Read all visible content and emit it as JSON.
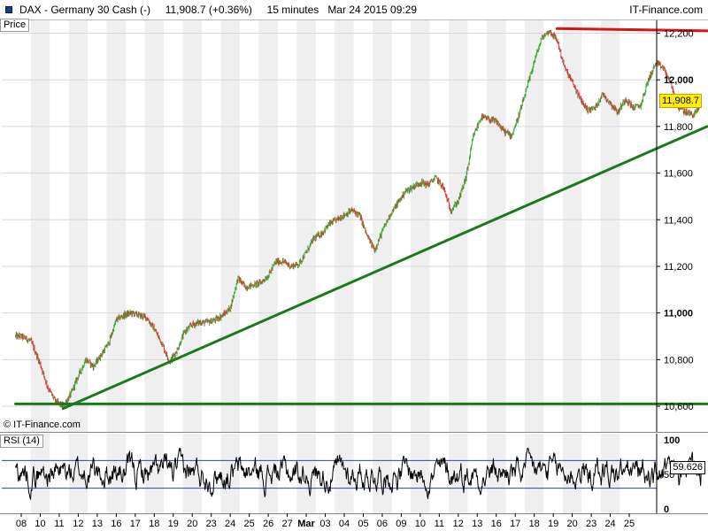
{
  "header": {
    "instrument": "DAX - Germany 30 Cash (-)",
    "last": "11,908.7",
    "change": "(+0.36%)",
    "timeframe": "15 minutes",
    "datetime": "Mar 24 2015 09:29",
    "brand": "IT-Finance.com"
  },
  "price_panel": {
    "label": "Price",
    "copyright": "© IT-Finance.com",
    "last_price_tag": "11,908.7"
  },
  "rsi_panel": {
    "label": "RSI (14)",
    "value_tag": "59.626"
  },
  "colors": {
    "up": "#33aa33",
    "down": "#dd3333",
    "trend_green": "#1a7a1a",
    "resistance_red": "#dd1111",
    "rsi_line": "#000000",
    "rsi_bands": "#3344aa",
    "price_tag": "#ffee00"
  },
  "chart_data": [
    {
      "type": "candlestick",
      "title": "DAX - Germany 30 Cash (-)",
      "ylim": [
        10560,
        12260
      ],
      "y_ticks": [
        10600,
        10800,
        11000,
        11200,
        11400,
        11600,
        11800,
        12000,
        12200
      ],
      "y_tick_labels": [
        "10,600",
        "10,800",
        "11,000",
        "11,200",
        "11,400",
        "11,600",
        "11,800",
        "12,000",
        "12,200"
      ],
      "y_tick_bold": [
        false,
        false,
        true,
        false,
        false,
        false,
        false,
        true,
        false
      ],
      "x_tick_labels": [
        "08",
        "10",
        "11",
        "12",
        "13",
        "16",
        "17",
        "18",
        "19",
        "20",
        "23",
        "24",
        "25",
        "26",
        "27",
        "Mar",
        "03",
        "04",
        "05",
        "06",
        "09",
        "10",
        "11",
        "12",
        "13",
        "16",
        "17",
        "18",
        "19",
        "20",
        "23",
        "24",
        "25"
      ],
      "last_price": 11908.7,
      "close_path": [
        [
          0,
          10900
        ],
        [
          0.5,
          10880
        ],
        [
          1.0,
          10780
        ],
        [
          1.4,
          10680
        ],
        [
          1.8,
          10620
        ],
        [
          2.2,
          10600
        ],
        [
          2.6,
          10650
        ],
        [
          3.0,
          10730
        ],
        [
          3.4,
          10800
        ],
        [
          3.8,
          10770
        ],
        [
          4.2,
          10820
        ],
        [
          4.6,
          10870
        ],
        [
          5.0,
          10970
        ],
        [
          5.4,
          10990
        ],
        [
          5.8,
          11000
        ],
        [
          6.2,
          10990
        ],
        [
          6.6,
          10980
        ],
        [
          7.0,
          10930
        ],
        [
          7.4,
          10870
        ],
        [
          7.8,
          10790
        ],
        [
          8.2,
          10840
        ],
        [
          8.6,
          10920
        ],
        [
          9.0,
          10950
        ],
        [
          9.4,
          10960
        ],
        [
          9.8,
          10960
        ],
        [
          10.2,
          10970
        ],
        [
          10.6,
          10990
        ],
        [
          11.0,
          11020
        ],
        [
          11.4,
          11150
        ],
        [
          11.8,
          11110
        ],
        [
          12.2,
          11120
        ],
        [
          12.6,
          11130
        ],
        [
          13.0,
          11160
        ],
        [
          13.4,
          11220
        ],
        [
          13.8,
          11220
        ],
        [
          14.2,
          11200
        ],
        [
          14.6,
          11210
        ],
        [
          15.0,
          11260
        ],
        [
          15.4,
          11320
        ],
        [
          15.8,
          11340
        ],
        [
          16.2,
          11380
        ],
        [
          16.6,
          11400
        ],
        [
          17.0,
          11420
        ],
        [
          17.4,
          11440
        ],
        [
          17.8,
          11420
        ],
        [
          18.2,
          11330
        ],
        [
          18.6,
          11270
        ],
        [
          19.0,
          11350
        ],
        [
          19.4,
          11420
        ],
        [
          19.8,
          11470
        ],
        [
          20.2,
          11520
        ],
        [
          20.6,
          11540
        ],
        [
          21.0,
          11560
        ],
        [
          21.4,
          11550
        ],
        [
          21.8,
          11580
        ],
        [
          22.2,
          11540
        ],
        [
          22.6,
          11440
        ],
        [
          23.0,
          11480
        ],
        [
          23.4,
          11580
        ],
        [
          23.8,
          11760
        ],
        [
          24.2,
          11840
        ],
        [
          24.6,
          11830
        ],
        [
          25.0,
          11820
        ],
        [
          25.4,
          11780
        ],
        [
          25.8,
          11760
        ],
        [
          26.2,
          11850
        ],
        [
          26.6,
          11960
        ],
        [
          27.0,
          12080
        ],
        [
          27.4,
          12180
        ],
        [
          27.8,
          12210
        ],
        [
          28.2,
          12170
        ],
        [
          28.6,
          12050
        ],
        [
          29.0,
          11990
        ],
        [
          29.4,
          11920
        ],
        [
          29.8,
          11870
        ],
        [
          30.2,
          11880
        ],
        [
          30.6,
          11940
        ],
        [
          31.0,
          11900
        ],
        [
          31.4,
          11860
        ],
        [
          31.8,
          11920
        ],
        [
          32.2,
          11880
        ],
        [
          32.6,
          11890
        ],
        [
          33.0,
          12000
        ],
        [
          33.4,
          12070
        ],
        [
          33.8,
          12050
        ],
        [
          34.2,
          11980
        ],
        [
          34.6,
          11880
        ],
        [
          35.0,
          11860
        ],
        [
          35.4,
          11850
        ],
        [
          35.8,
          11900
        ]
      ],
      "trendlines": [
        {
          "name": "support_horizontal",
          "color": "green",
          "from": [
            -0.3,
            10610
          ],
          "to": [
            36.1,
            10610
          ]
        },
        {
          "name": "rising_support",
          "color": "green",
          "from": [
            2.2,
            10590
          ],
          "to": [
            36.1,
            11800
          ]
        },
        {
          "name": "resistance",
          "color": "red",
          "from": [
            28.2,
            12220
          ],
          "to": [
            36.1,
            12210
          ]
        }
      ]
    },
    {
      "type": "line",
      "title": "RSI (14)",
      "ylim": [
        0,
        100
      ],
      "y_tick_labels": [
        "100",
        "50",
        "0"
      ],
      "y_ticks": [
        100,
        50,
        0
      ],
      "bands": [
        70,
        30
      ],
      "last_value": 59.626
    }
  ]
}
